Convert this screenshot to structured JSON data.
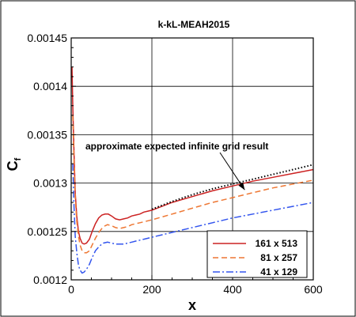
{
  "chart_data": {
    "type": "line",
    "title": "k-kL-MEAH2015",
    "xlabel": "x",
    "ylabel_main": "C",
    "ylabel_sub": "f",
    "xlim": [
      0,
      600
    ],
    "ylim": [
      0.0012,
      0.00145
    ],
    "x_ticks": [
      0,
      200,
      400,
      600
    ],
    "x_tick_labels": [
      "0",
      "200",
      "400",
      "600"
    ],
    "y_ticks": [
      0.0012,
      0.00125,
      0.0013,
      0.00135,
      0.0014,
      0.00145
    ],
    "y_tick_labels": [
      "0.0012",
      "0.00125",
      "0.0013",
      "0.00135",
      "0.0014",
      "0.00145"
    ],
    "grid": true,
    "legend_position": "bottom-right",
    "series": [
      {
        "name": "161 x 513",
        "color": "#cc2222",
        "style": "solid",
        "x": [
          2,
          4,
          7,
          10,
          14,
          18,
          22,
          27,
          32,
          38,
          45,
          52,
          60,
          68,
          76,
          84,
          92,
          100,
          110,
          120,
          130,
          140,
          150,
          160,
          170,
          180,
          190,
          200,
          250,
          300,
          350,
          400,
          450,
          500,
          550,
          600
        ],
        "y": [
          0.00142,
          0.00138,
          0.00133,
          0.00129,
          0.001265,
          0.00125,
          0.001243,
          0.001238,
          0.001237,
          0.001238,
          0.001242,
          0.00125,
          0.001258,
          0.001264,
          0.001267,
          0.001268,
          0.001268,
          0.001266,
          0.001263,
          0.001262,
          0.001263,
          0.001264,
          0.001266,
          0.001267,
          0.001268,
          0.00127,
          0.001271,
          0.001272,
          0.00128,
          0.001286,
          0.001292,
          0.001297,
          0.001302,
          0.001306,
          0.00131,
          0.001314
        ]
      },
      {
        "name": "81 x 257",
        "color": "#ee7733",
        "style": "dashed",
        "x": [
          4,
          7,
          10,
          14,
          18,
          22,
          27,
          32,
          38,
          45,
          52,
          60,
          70,
          80,
          90,
          100,
          110,
          120,
          130,
          140,
          150,
          160,
          170,
          180,
          190,
          200,
          250,
          300,
          350,
          400,
          450,
          500,
          550,
          600
        ],
        "y": [
          0.00137,
          0.00132,
          0.001285,
          0.00126,
          0.001245,
          0.001236,
          0.00123,
          0.001228,
          0.001228,
          0.00123,
          0.001236,
          0.001243,
          0.00125,
          0.001255,
          0.001257,
          0.001256,
          0.001254,
          0.001253,
          0.001254,
          0.001255,
          0.001257,
          0.001258,
          0.001259,
          0.00126,
          0.001261,
          0.001262,
          0.001268,
          0.001274,
          0.00128,
          0.001285,
          0.00129,
          0.001295,
          0.001299,
          0.001303
        ]
      },
      {
        "name": "41 x 129",
        "color": "#3355ee",
        "style": "dashdot",
        "x": [
          4,
          7,
          10,
          14,
          18,
          22,
          27,
          32,
          38,
          45,
          52,
          60,
          70,
          80,
          90,
          100,
          110,
          120,
          130,
          140,
          150,
          160,
          170,
          180,
          190,
          200,
          250,
          300,
          350,
          400,
          450,
          500,
          550,
          600
        ],
        "y": [
          0.00132,
          0.001275,
          0.001245,
          0.001228,
          0.001215,
          0.00121,
          0.001207,
          0.001208,
          0.001211,
          0.001216,
          0.001223,
          0.00123,
          0.001235,
          0.001238,
          0.001239,
          0.001238,
          0.001237,
          0.001237,
          0.001237,
          0.001238,
          0.001239,
          0.00124,
          0.001241,
          0.001242,
          0.001243,
          0.001244,
          0.001249,
          0.001254,
          0.001259,
          0.001264,
          0.001268,
          0.001272,
          0.001276,
          0.00128
        ]
      },
      {
        "name": "",
        "color": "#000000",
        "style": "dotted",
        "x": [
          200,
          250,
          300,
          350,
          400,
          450,
          500,
          550,
          600
        ],
        "y": [
          0.001273,
          0.001281,
          0.001288,
          0.001294,
          0.001299,
          0.001304,
          0.001309,
          0.001314,
          0.001319
        ]
      }
    ],
    "annotation": {
      "text": "approximate expected infinite grid result",
      "arrow_to": [
        430,
        0.001293
      ]
    }
  }
}
